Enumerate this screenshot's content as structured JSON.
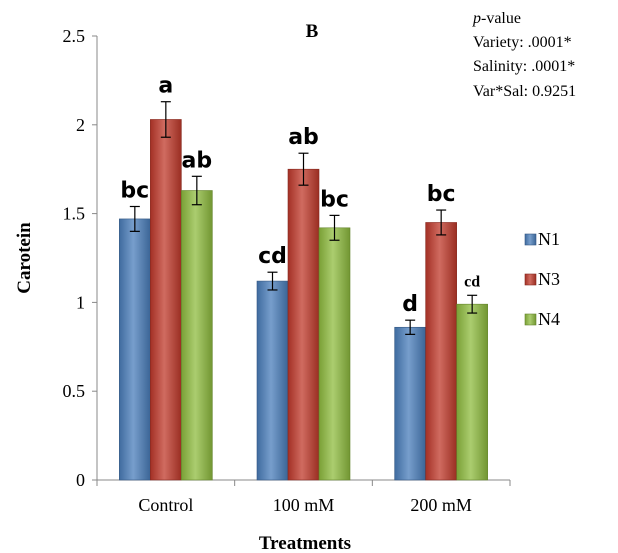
{
  "chart_data": {
    "type": "bar",
    "title": "B",
    "xlabel": "Treatments",
    "ylabel": "Carotein",
    "categories": [
      "Control",
      "100 mM",
      "200 mM"
    ],
    "ylim": [
      0,
      2.5
    ],
    "yticks": [
      "0",
      "0.5",
      "1",
      "1.5",
      "2",
      "2.5"
    ],
    "grid": false,
    "legend_position": "right",
    "series": [
      {
        "name": "N1",
        "color": "#4a7ebb",
        "values": [
          1.47,
          1.12,
          0.86
        ],
        "errors": [
          0.07,
          0.05,
          0.04
        ],
        "letters": [
          "bc",
          "cd",
          "d"
        ]
      },
      {
        "name": "N3",
        "color": "#c0392b",
        "values": [
          2.03,
          1.75,
          1.45
        ],
        "errors": [
          0.1,
          0.09,
          0.07
        ],
        "letters": [
          "a",
          "ab",
          "bc"
        ]
      },
      {
        "name": "N4",
        "color": "#8fbc3f",
        "values": [
          1.63,
          1.42,
          0.99
        ],
        "errors": [
          0.08,
          0.07,
          0.05
        ],
        "letters": [
          "ab",
          "bc",
          "cd"
        ]
      }
    ],
    "annotation": {
      "heading_italic": "p",
      "heading_rest": "-value",
      "lines": [
        "Variety: .0001*",
        "Salinity: .0001*",
        "Var*Sal: 0.9251"
      ]
    }
  }
}
